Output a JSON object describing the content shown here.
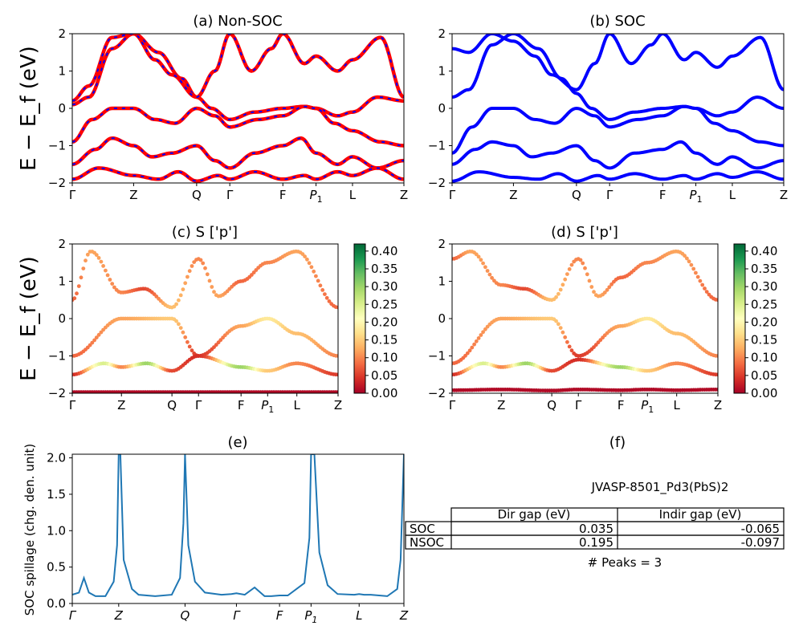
{
  "figure": {
    "ylabel_bands": "E − E_f (eV)",
    "colors": {
      "nonsoc_line": "#ff0000",
      "nonsoc_dash": "#0000ff",
      "soc_line": "#0000ff",
      "spillage_line": "#1f77b4"
    },
    "colormap": "RdYlGn"
  },
  "chart_data": [
    {
      "id": "a",
      "type": "line",
      "title": "(a) Non-SOC",
      "ylim": [
        -2,
        2
      ],
      "yticks": [
        "2",
        "1",
        "0",
        "−1",
        "−2"
      ],
      "kpath": [
        "Γ",
        "Z",
        "Q",
        "Γ",
        "F",
        "P1",
        "L",
        "Z"
      ],
      "kpos": [
        0,
        0.185,
        0.375,
        0.475,
        0.635,
        0.735,
        0.845,
        1.0
      ],
      "series": [
        {
          "x": [
            0,
            0.05,
            0.12,
            0.185,
            0.26,
            0.33,
            0.375,
            0.42,
            0.475,
            0.55,
            0.635,
            0.7,
            0.735,
            0.8,
            0.845,
            0.92,
            1.0
          ],
          "y": [
            0.1,
            0.3,
            1.6,
            2.0,
            1.5,
            0.8,
            0.3,
            0.0,
            -0.3,
            -0.1,
            0.0,
            0.05,
            0.0,
            -0.2,
            -0.1,
            0.3,
            0.2
          ]
        },
        {
          "x": [
            0,
            0.06,
            0.12,
            0.185,
            0.25,
            0.31,
            0.375,
            0.43,
            0.475,
            0.56,
            0.635,
            0.7,
            0.735,
            0.79,
            0.845,
            0.93,
            1.0
          ],
          "y": [
            -0.9,
            -0.3,
            0.0,
            0.0,
            -0.3,
            -0.4,
            0.0,
            -0.2,
            -0.5,
            -0.3,
            -0.2,
            0.05,
            0.0,
            -0.4,
            -0.6,
            -0.9,
            -1.0
          ]
        },
        {
          "x": [
            0,
            0.07,
            0.12,
            0.185,
            0.24,
            0.3,
            0.375,
            0.43,
            0.475,
            0.55,
            0.635,
            0.69,
            0.735,
            0.8,
            0.845,
            0.92,
            1.0
          ],
          "y": [
            -1.5,
            -1.1,
            -0.8,
            -1.0,
            -1.3,
            -1.2,
            -1.0,
            -1.4,
            -1.6,
            -1.2,
            -1.0,
            -0.8,
            -1.2,
            -1.5,
            -1.3,
            -1.6,
            -1.4
          ]
        },
        {
          "x": [
            0,
            0.08,
            0.185,
            0.26,
            0.32,
            0.375,
            0.44,
            0.475,
            0.55,
            0.635,
            0.7,
            0.735,
            0.8,
            0.845,
            0.92,
            1.0
          ],
          "y": [
            -1.9,
            -1.6,
            -1.8,
            -1.9,
            -1.7,
            -1.95,
            -1.8,
            -1.9,
            -1.7,
            -1.9,
            -1.8,
            -1.9,
            -1.7,
            -1.8,
            -1.6,
            -1.9
          ]
        },
        {
          "x": [
            0,
            0.05,
            0.12,
            0.185,
            0.25,
            0.3,
            0.375,
            0.43,
            0.475,
            0.54,
            0.6,
            0.635,
            0.7,
            0.735,
            0.8,
            0.845,
            0.93,
            1.0
          ],
          "y": [
            0.2,
            0.6,
            1.9,
            2.0,
            1.3,
            0.9,
            0.3,
            1.0,
            2.0,
            1.0,
            1.6,
            2.0,
            1.2,
            1.4,
            1.0,
            1.3,
            1.9,
            0.3
          ]
        }
      ]
    },
    {
      "id": "b",
      "type": "line",
      "title": "(b) SOC",
      "ylim": [
        -2,
        2
      ],
      "yticks": [
        "2",
        "1",
        "0",
        "−1",
        "−2"
      ],
      "kpath": [
        "Γ",
        "Z",
        "Q",
        "Γ",
        "F",
        "P1",
        "L",
        "Z"
      ],
      "kpos": [
        0,
        0.185,
        0.375,
        0.475,
        0.635,
        0.735,
        0.845,
        1.0
      ],
      "series": [
        {
          "x": [
            0,
            0.05,
            0.12,
            0.185,
            0.26,
            0.33,
            0.375,
            0.42,
            0.475,
            0.55,
            0.635,
            0.7,
            0.735,
            0.8,
            0.845,
            0.92,
            1.0
          ],
          "y": [
            0.3,
            0.5,
            1.7,
            2.0,
            1.6,
            0.8,
            0.4,
            0.0,
            -0.3,
            -0.1,
            0.0,
            0.05,
            0.0,
            -0.2,
            -0.1,
            0.3,
            0.0
          ]
        },
        {
          "x": [
            0,
            0.06,
            0.12,
            0.185,
            0.25,
            0.31,
            0.375,
            0.43,
            0.475,
            0.56,
            0.635,
            0.7,
            0.735,
            0.79,
            0.845,
            0.93,
            1.0
          ],
          "y": [
            -1.2,
            -0.5,
            0.0,
            0.0,
            -0.3,
            -0.4,
            0.0,
            -0.2,
            -0.5,
            -0.3,
            -0.2,
            0.05,
            0.0,
            -0.4,
            -0.6,
            -0.9,
            -1.0
          ]
        },
        {
          "x": [
            0,
            0.07,
            0.12,
            0.185,
            0.24,
            0.3,
            0.375,
            0.43,
            0.475,
            0.55,
            0.635,
            0.69,
            0.735,
            0.8,
            0.845,
            0.92,
            1.0
          ],
          "y": [
            -1.5,
            -1.1,
            -0.9,
            -1.0,
            -1.3,
            -1.2,
            -1.0,
            -1.4,
            -1.6,
            -1.2,
            -1.1,
            -0.9,
            -1.2,
            -1.5,
            -1.3,
            -1.6,
            -1.4
          ]
        },
        {
          "x": [
            0,
            0.08,
            0.185,
            0.26,
            0.32,
            0.375,
            0.44,
            0.475,
            0.55,
            0.635,
            0.7,
            0.735,
            0.8,
            0.845,
            0.92,
            1.0
          ],
          "y": [
            -1.95,
            -1.7,
            -1.85,
            -1.9,
            -1.75,
            -1.95,
            -1.8,
            -1.9,
            -1.75,
            -1.9,
            -1.8,
            -1.9,
            -1.75,
            -1.85,
            -1.7,
            -1.9
          ]
        },
        {
          "x": [
            0,
            0.05,
            0.12,
            0.185,
            0.25,
            0.3,
            0.375,
            0.43,
            0.475,
            0.54,
            0.6,
            0.635,
            0.7,
            0.735,
            0.8,
            0.845,
            0.93,
            1.0
          ],
          "y": [
            1.6,
            1.5,
            2.0,
            1.8,
            1.4,
            0.9,
            0.5,
            1.2,
            2.0,
            1.2,
            1.7,
            2.0,
            1.3,
            1.5,
            1.1,
            1.4,
            1.9,
            0.5
          ]
        }
      ]
    },
    {
      "id": "c",
      "type": "scatter",
      "title": "(c)  S ['p']",
      "ylim": [
        -2,
        2
      ],
      "yticks": [
        "2",
        "1",
        "0",
        "−1",
        "−2"
      ],
      "kpath": [
        "Γ",
        "Z",
        "Q",
        "Γ",
        "F",
        "P1",
        "L",
        "Z"
      ],
      "kpos": [
        0,
        0.185,
        0.375,
        0.475,
        0.635,
        0.735,
        0.845,
        1.0
      ],
      "colorbar": {
        "min": 0.0,
        "max": 0.42,
        "ticks": [
          "0.40",
          "0.35",
          "0.30",
          "0.25",
          "0.20",
          "0.15",
          "0.10",
          "0.05",
          "0.00"
        ],
        "tick_values": [
          0.4,
          0.35,
          0.3,
          0.25,
          0.2,
          0.15,
          0.1,
          0.05,
          0.0
        ]
      },
      "bands": [
        {
          "x": [
            0,
            0.185,
            0.375,
            0.475,
            0.635,
            0.735,
            0.845,
            1.0
          ],
          "y": [
            -1.0,
            0.0,
            0.0,
            -1.0,
            -0.2,
            0.0,
            -0.4,
            -1.0
          ],
          "s": [
            0.08,
            0.12,
            0.15,
            0.05,
            0.12,
            0.18,
            0.14,
            0.1
          ]
        },
        {
          "x": [
            0,
            0.12,
            0.185,
            0.28,
            0.375,
            0.475,
            0.635,
            0.735,
            0.845,
            1.0
          ],
          "y": [
            -1.5,
            -1.2,
            -1.3,
            -1.2,
            -1.4,
            -1.0,
            -1.3,
            -1.4,
            -1.2,
            -1.5
          ],
          "s": [
            0.04,
            0.25,
            0.1,
            0.3,
            0.06,
            0.04,
            0.3,
            0.15,
            0.1,
            0.05
          ]
        },
        {
          "x": [
            0,
            0.185,
            0.375,
            0.475,
            0.635,
            0.735,
            0.845,
            1.0
          ],
          "y": [
            -1.97,
            -1.97,
            -1.97,
            -1.97,
            -1.97,
            -1.97,
            -1.97,
            -1.97
          ],
          "s": [
            0.01,
            0.01,
            0.01,
            0.01,
            0.01,
            0.01,
            0.01,
            0.01
          ]
        },
        {
          "x": [
            0,
            0.07,
            0.185,
            0.27,
            0.375,
            0.475,
            0.55,
            0.635,
            0.735,
            0.845,
            1.0
          ],
          "y": [
            0.5,
            1.8,
            0.7,
            0.8,
            0.3,
            1.6,
            0.6,
            1.0,
            1.5,
            1.8,
            0.3
          ],
          "s": [
            0.08,
            0.12,
            0.1,
            0.06,
            0.14,
            0.1,
            0.12,
            0.08,
            0.1,
            0.12,
            0.08
          ]
        }
      ]
    },
    {
      "id": "d",
      "type": "scatter",
      "title": "(d) S ['p']",
      "ylim": [
        -2,
        2
      ],
      "yticks": [
        "2",
        "1",
        "0",
        "−1",
        "−2"
      ],
      "kpath": [
        "Γ",
        "Z",
        "Q",
        "Γ",
        "F",
        "P1",
        "L",
        "Z"
      ],
      "kpos": [
        0,
        0.185,
        0.375,
        0.475,
        0.635,
        0.735,
        0.845,
        1.0
      ],
      "colorbar": {
        "min": 0.0,
        "max": 0.42,
        "ticks": [
          "0.40",
          "0.35",
          "0.30",
          "0.25",
          "0.20",
          "0.15",
          "0.10",
          "0.05",
          "0.00"
        ],
        "tick_values": [
          0.4,
          0.35,
          0.3,
          0.25,
          0.2,
          0.15,
          0.1,
          0.05,
          0.0
        ]
      },
      "bands": [
        {
          "x": [
            0,
            0.185,
            0.375,
            0.475,
            0.635,
            0.735,
            0.845,
            1.0
          ],
          "y": [
            -1.2,
            0.0,
            0.0,
            -1.0,
            -0.2,
            0.0,
            -0.4,
            -1.0
          ],
          "s": [
            0.08,
            0.12,
            0.15,
            0.05,
            0.12,
            0.18,
            0.14,
            0.1
          ]
        },
        {
          "x": [
            0,
            0.12,
            0.185,
            0.28,
            0.375,
            0.475,
            0.635,
            0.735,
            0.845,
            1.0
          ],
          "y": [
            -1.5,
            -1.2,
            -1.3,
            -1.2,
            -1.4,
            -1.1,
            -1.3,
            -1.4,
            -1.2,
            -1.5
          ],
          "s": [
            0.04,
            0.25,
            0.1,
            0.3,
            0.06,
            0.04,
            0.3,
            0.15,
            0.1,
            0.05
          ]
        },
        {
          "x": [
            0,
            0.185,
            0.375,
            0.475,
            0.635,
            0.735,
            0.845,
            1.0
          ],
          "y": [
            -1.92,
            -1.9,
            -1.93,
            -1.9,
            -1.92,
            -1.9,
            -1.92,
            -1.9
          ],
          "s": [
            0.01,
            0.01,
            0.01,
            0.01,
            0.01,
            0.01,
            0.01,
            0.01
          ]
        },
        {
          "x": [
            0,
            0.07,
            0.185,
            0.27,
            0.375,
            0.475,
            0.55,
            0.635,
            0.735,
            0.845,
            1.0
          ],
          "y": [
            1.6,
            1.8,
            0.9,
            0.8,
            0.5,
            1.6,
            0.6,
            1.1,
            1.5,
            1.8,
            0.5
          ],
          "s": [
            0.08,
            0.12,
            0.1,
            0.06,
            0.14,
            0.1,
            0.12,
            0.08,
            0.1,
            0.12,
            0.08
          ]
        }
      ]
    },
    {
      "id": "e",
      "type": "line",
      "title": "(e)",
      "ylabel": "SOC spillage (chg. den. unit)",
      "ylim": [
        0,
        2.05
      ],
      "yticks": [
        "2.0",
        "1.5",
        "1.0",
        "0.5",
        "0.0"
      ],
      "ytick_values": [
        2.0,
        1.5,
        1.0,
        0.5,
        0.0
      ],
      "kpath": [
        "Γ",
        "Z",
        "Q",
        "Γ",
        "F",
        "P1",
        "L",
        "Z"
      ],
      "kpos": [
        0,
        0.14,
        0.34,
        0.495,
        0.625,
        0.72,
        0.865,
        1.0
      ],
      "x": [
        0,
        0.02,
        0.035,
        0.05,
        0.07,
        0.1,
        0.125,
        0.135,
        0.14,
        0.145,
        0.155,
        0.18,
        0.2,
        0.25,
        0.3,
        0.325,
        0.335,
        0.34,
        0.35,
        0.37,
        0.4,
        0.45,
        0.48,
        0.495,
        0.52,
        0.55,
        0.56,
        0.58,
        0.6,
        0.625,
        0.65,
        0.7,
        0.715,
        0.72,
        0.73,
        0.745,
        0.77,
        0.8,
        0.85,
        0.865,
        0.88,
        0.9,
        0.95,
        0.98,
        0.99,
        1.0
      ],
      "y": [
        0.12,
        0.15,
        0.35,
        0.15,
        0.1,
        0.1,
        0.3,
        0.8,
        2.05,
        2.05,
        0.6,
        0.2,
        0.12,
        0.1,
        0.12,
        0.35,
        1.1,
        2.05,
        0.8,
        0.3,
        0.15,
        0.12,
        0.13,
        0.14,
        0.12,
        0.22,
        0.18,
        0.1,
        0.1,
        0.11,
        0.11,
        0.28,
        0.9,
        2.05,
        2.05,
        0.7,
        0.25,
        0.13,
        0.12,
        0.13,
        0.12,
        0.12,
        0.1,
        0.2,
        0.6,
        2.05
      ]
    }
  ],
  "panel_f": {
    "title": "(f)",
    "material": "JVASP-8501_Pd3(PbS)2",
    "columns": [
      "Dir gap (eV)",
      "Indir gap (eV)"
    ],
    "rows": [
      {
        "label": "SOC",
        "dir": "0.035",
        "indir": "-0.065"
      },
      {
        "label": "NSOC",
        "dir": "0.195",
        "indir": "-0.097"
      }
    ],
    "peaks_text": "# Peaks = 3"
  }
}
